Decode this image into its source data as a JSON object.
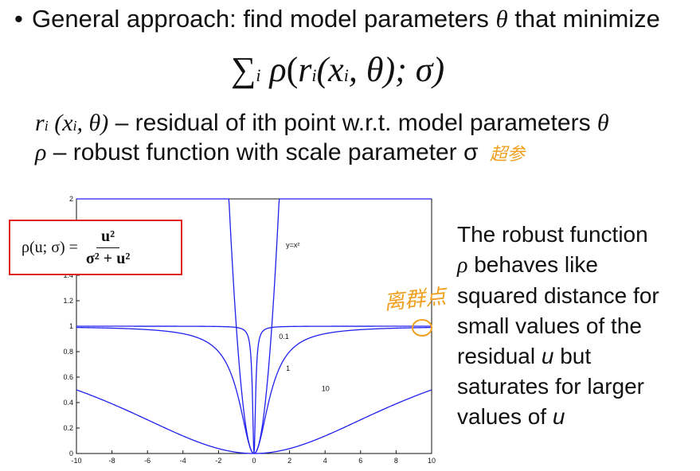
{
  "header": {
    "bullet": "•",
    "line_before": "General approach: find model parameters ",
    "theta": "θ",
    "line_after": " that minimize"
  },
  "objective": {
    "sum": "∑",
    "sub_i": "i",
    "rho": "ρ",
    "open": "(",
    "r": "r",
    "r_sub": "i",
    "args": "(x",
    "x_sub": "i",
    "tail": ", θ); σ)"
  },
  "definitions": {
    "r_symbol": "r",
    "r_sub": "i",
    "r_args": " (x",
    "x_sub": "i",
    "r_tail": ", θ)",
    "r_desc": " – residual of ith point w.r.t. model parameters ",
    "r_theta": "θ",
    "rho_symbol": "ρ",
    "rho_desc": " – robust function with scale parameter σ",
    "handwritten_note": "超参"
  },
  "formula_box": {
    "lhs": "ρ(u; σ) =",
    "numerator": "u²",
    "denominator": "σ² + u²"
  },
  "side_text": {
    "line1": "The robust function",
    "line2_rho": "ρ",
    "line2": " behaves like",
    "line3": "squared distance for",
    "line4": "small values of the",
    "line5_pre": "residual ",
    "line5_u": "u",
    "line5_post": " but",
    "line6": "saturates for larger",
    "line7_pre": "values of ",
    "line7_u": "u"
  },
  "annotation": "离群点",
  "chart_data": {
    "type": "line",
    "xlim": [
      -10,
      10
    ],
    "ylim": [
      0,
      2
    ],
    "x_ticks": [
      "-10",
      "-8",
      "-6",
      "-4",
      "-2",
      "0",
      "2",
      "4",
      "6",
      "8",
      "10"
    ],
    "y_ticks": [
      "0",
      "0.2",
      "0.4",
      "0.6",
      "0.8",
      "1",
      "1.2",
      "1.4",
      "2"
    ],
    "series": [
      {
        "name": "y=x²",
        "sigma": 0,
        "color": "#2020ee"
      },
      {
        "name": "0.1",
        "sigma": 0.1,
        "color": "#2020ee"
      },
      {
        "name": "1",
        "sigma": 1,
        "color": "#2020ee"
      },
      {
        "name": "10",
        "sigma": 10,
        "color": "#2020ee"
      }
    ],
    "curve_labels": [
      {
        "text": "y=x²",
        "x": 1.8,
        "y": 1.62
      },
      {
        "text": "0.1",
        "x": 1.4,
        "y": 0.9
      },
      {
        "text": "1",
        "x": 1.8,
        "y": 0.65
      },
      {
        "text": "10",
        "x": 3.8,
        "y": 0.49
      }
    ],
    "grid": false
  }
}
